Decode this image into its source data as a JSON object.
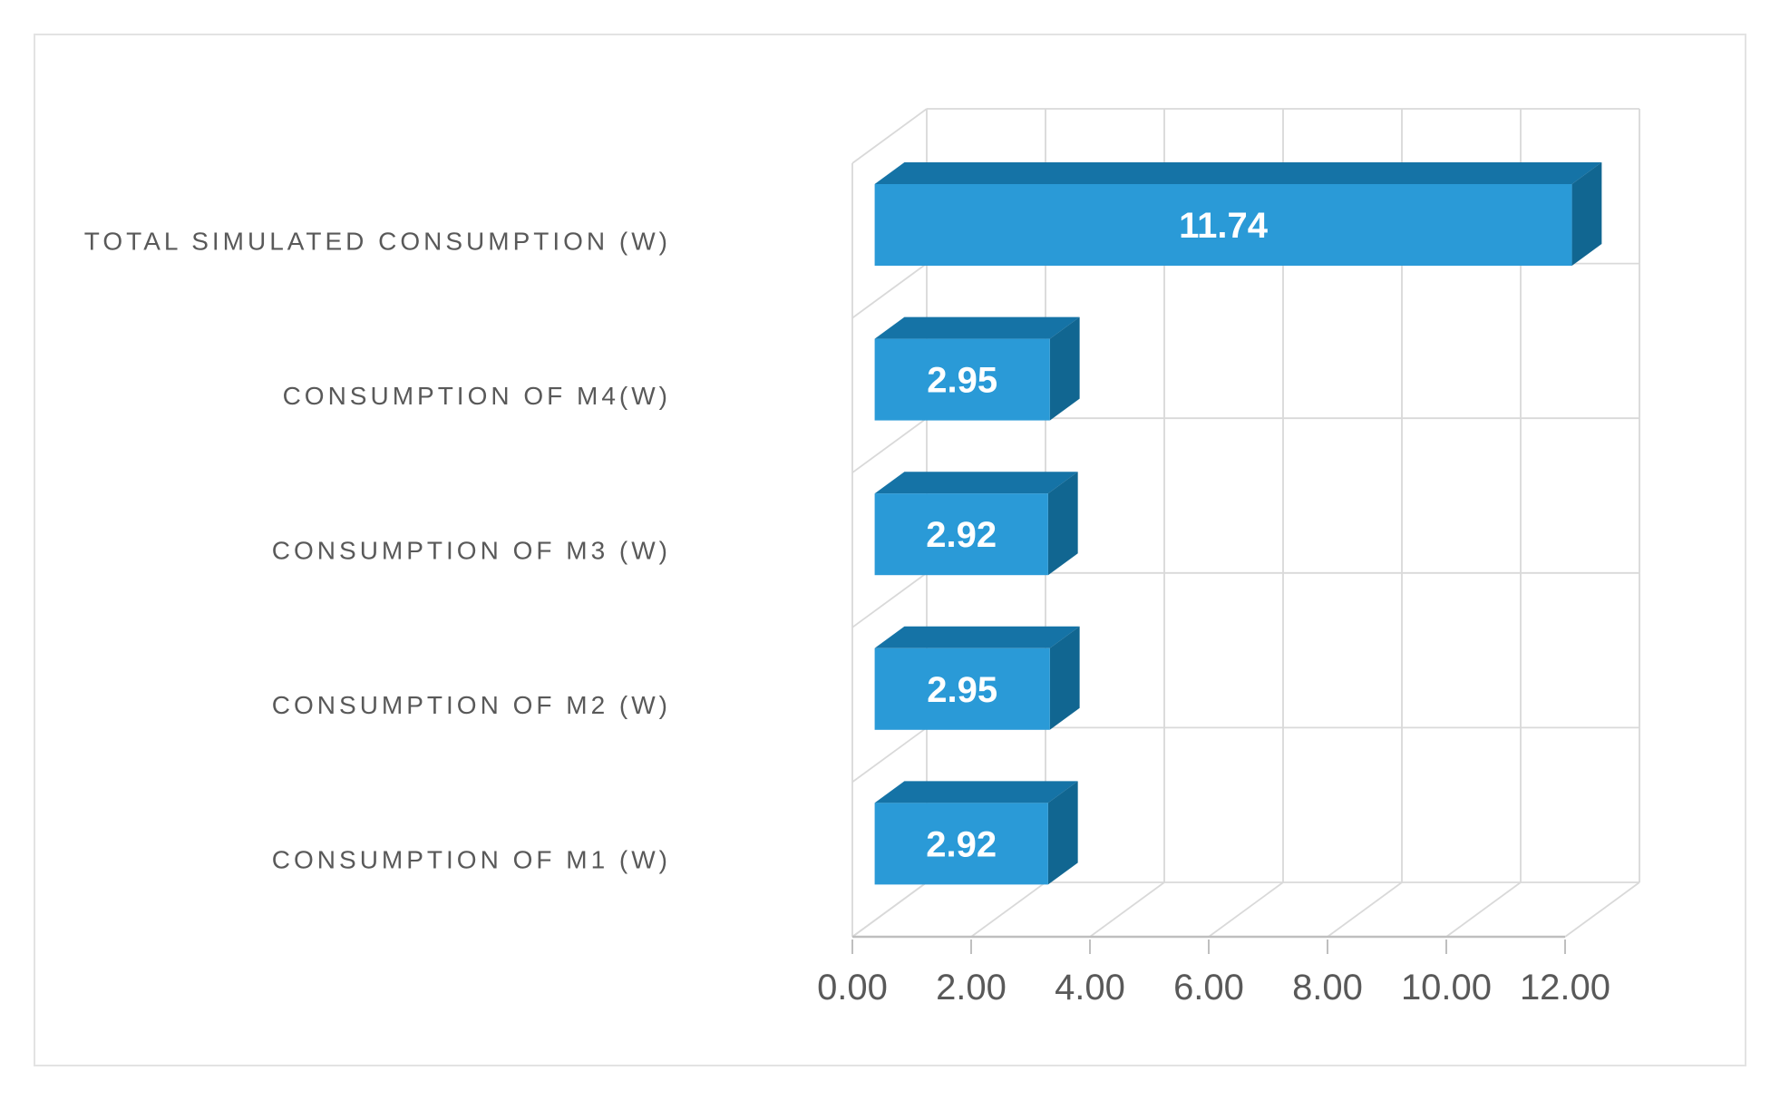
{
  "chart_data": {
    "type": "bar",
    "orientation": "horizontal",
    "style": "3d",
    "title": "",
    "xlabel": "",
    "ylabel": "",
    "categories": [
      "TOTAL SIMULATED CONSUMPTION (W)",
      "CONSUMPTION OF M4(W)",
      "CONSUMPTION OF M3 (W)",
      "CONSUMPTION OF M2 (W)",
      "CONSUMPTION OF M1 (W)"
    ],
    "values": [
      11.74,
      2.95,
      2.92,
      2.95,
      2.92
    ],
    "data_labels": [
      "11.74",
      "2.95",
      "2.92",
      "2.95",
      "2.92"
    ],
    "x_ticks": [
      "0.00",
      "2.00",
      "4.00",
      "6.00",
      "8.00",
      "10.00",
      "12.00"
    ],
    "x_tick_values": [
      0,
      2,
      4,
      6,
      8,
      10,
      12
    ],
    "xlim": [
      0,
      12
    ],
    "grid": true,
    "legend": false,
    "data_labels_position": "inside-center"
  },
  "colors": {
    "bar_front": "#2A9AD7",
    "bar_top": "#1573A6",
    "bar_side": "#116691",
    "gridline": "#D9D9D9",
    "axis_line": "#BFBFBF",
    "axis_text": "#595959",
    "data_label_text": "#FFFFFF",
    "chart_border": "#E3E3E3",
    "background": "#FFFFFF"
  }
}
